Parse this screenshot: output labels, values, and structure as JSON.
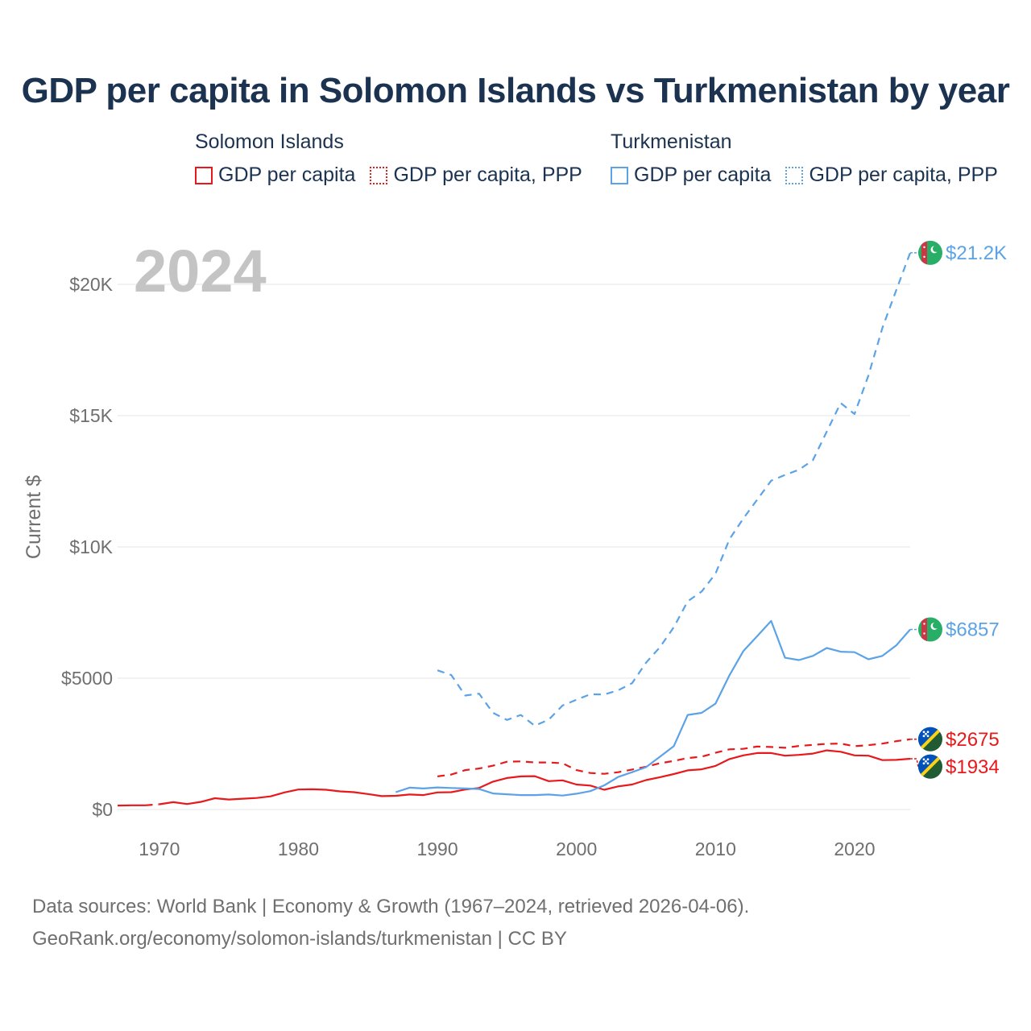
{
  "title": "GDP per capita in Solomon Islands vs Turkmenistan by year",
  "colors": {
    "solomon": "#e8181b",
    "turkmenistan": "#5ba3e6",
    "grid": "#e4e4e4",
    "axis_text": "#6f6f6f",
    "title": "#1b3350",
    "year_watermark": "#c4c4c4"
  },
  "legend": {
    "groups": [
      {
        "country": "Solomon Islands",
        "items": [
          "GDP per capita",
          "GDP per capita, PPP"
        ]
      },
      {
        "country": "Turkmenistan",
        "items": [
          "GDP per capita",
          "GDP per capita, PPP"
        ]
      }
    ]
  },
  "chart_data": {
    "type": "line",
    "title": "GDP per capita in Solomon Islands vs Turkmenistan by year",
    "year_label": "2024",
    "ylabel": "Current $",
    "xlabel": "",
    "xlim": [
      1967,
      2024
    ],
    "ylim": [
      0,
      22000
    ],
    "x_ticks": [
      1970,
      1980,
      1990,
      2000,
      2010,
      2020
    ],
    "y_ticks": [
      0,
      5000,
      10000,
      15000,
      20000
    ],
    "y_tick_labels": [
      "$0",
      "$5000",
      "$10K",
      "$15K",
      "$20K"
    ],
    "grid": true,
    "series": [
      {
        "name": "Solomon Islands GDP per capita",
        "country": "Solomon Islands",
        "dashed": false,
        "end_label": "$1934",
        "x": [
          1967,
          1968,
          1969,
          1970,
          1971,
          1972,
          1973,
          1974,
          1975,
          1976,
          1977,
          1978,
          1979,
          1980,
          1981,
          1982,
          1983,
          1984,
          1985,
          1986,
          1987,
          1988,
          1989,
          1990,
          1991,
          1992,
          1993,
          1994,
          1995,
          1996,
          1997,
          1998,
          1999,
          2000,
          2001,
          2002,
          2003,
          2004,
          2005,
          2006,
          2007,
          2008,
          2009,
          2010,
          2011,
          2012,
          2013,
          2014,
          2015,
          2016,
          2017,
          2018,
          2019,
          2020,
          2021,
          2022,
          2023,
          2024
        ],
        "y": [
          150,
          160,
          160,
          200,
          280,
          210,
          290,
          430,
          380,
          410,
          440,
          500,
          650,
          760,
          770,
          750,
          690,
          660,
          590,
          510,
          520,
          570,
          550,
          650,
          660,
          760,
          820,
          1060,
          1200,
          1260,
          1270,
          1080,
          1110,
          950,
          910,
          750,
          880,
          950,
          1120,
          1230,
          1350,
          1490,
          1530,
          1660,
          1920,
          2060,
          2150,
          2150,
          2050,
          2080,
          2130,
          2250,
          2200,
          2060,
          2050,
          1880,
          1890,
          1934
        ],
        "gap_after_index": [
          2
        ]
      },
      {
        "name": "Solomon Islands GDP per capita, PPP",
        "country": "Solomon Islands",
        "dashed": true,
        "end_label": "$2675",
        "x": [
          1990,
          1991,
          1992,
          1993,
          1994,
          1995,
          1996,
          1997,
          1998,
          1999,
          2000,
          2001,
          2002,
          2003,
          2004,
          2005,
          2006,
          2007,
          2008,
          2009,
          2010,
          2011,
          2012,
          2013,
          2014,
          2015,
          2016,
          2017,
          2018,
          2019,
          2020,
          2021,
          2022,
          2023,
          2024
        ],
        "y": [
          1260,
          1330,
          1500,
          1560,
          1670,
          1820,
          1830,
          1790,
          1790,
          1760,
          1500,
          1390,
          1360,
          1420,
          1520,
          1630,
          1760,
          1850,
          1960,
          2010,
          2160,
          2290,
          2310,
          2400,
          2380,
          2350,
          2420,
          2460,
          2500,
          2510,
          2410,
          2450,
          2510,
          2600,
          2675
        ]
      },
      {
        "name": "Turkmenistan GDP per capita",
        "country": "Turkmenistan",
        "dashed": false,
        "end_label": "$6857",
        "x": [
          1987,
          1988,
          1989,
          1990,
          1991,
          1992,
          1993,
          1994,
          1995,
          1996,
          1997,
          1998,
          1999,
          2000,
          2001,
          2002,
          2003,
          2004,
          2005,
          2006,
          2007,
          2008,
          2009,
          2010,
          2011,
          2012,
          2013,
          2014,
          2015,
          2016,
          2017,
          2018,
          2019,
          2020,
          2021,
          2022,
          2023,
          2024
        ],
        "y": [
          660,
          830,
          800,
          840,
          820,
          800,
          780,
          610,
          580,
          550,
          550,
          570,
          530,
          600,
          700,
          920,
          1240,
          1420,
          1610,
          2010,
          2410,
          3600,
          3680,
          4030,
          5110,
          6030,
          6600,
          7180,
          5780,
          5690,
          5850,
          6150,
          6010,
          5990,
          5720,
          5850,
          6250,
          6857
        ]
      },
      {
        "name": "Turkmenistan GDP per capita, PPP",
        "country": "Turkmenistan",
        "dashed": true,
        "end_label": "$21.2K",
        "x": [
          1990,
          1991,
          1992,
          1993,
          1994,
          1995,
          1996,
          1997,
          1998,
          1999,
          2000,
          2001,
          2002,
          2003,
          2004,
          2005,
          2006,
          2007,
          2008,
          2009,
          2010,
          2011,
          2012,
          2013,
          2014,
          2015,
          2016,
          2017,
          2018,
          2019,
          2020,
          2021,
          2022,
          2023,
          2024
        ],
        "y": [
          5300,
          5120,
          4340,
          4410,
          3680,
          3410,
          3600,
          3190,
          3420,
          3960,
          4180,
          4390,
          4380,
          4540,
          4810,
          5590,
          6180,
          6940,
          7930,
          8300,
          8980,
          10290,
          11080,
          11800,
          12520,
          12740,
          12940,
          13300,
          14390,
          15480,
          15060,
          16530,
          18340,
          19780,
          21200
        ]
      }
    ]
  },
  "footer": {
    "line1": "Data sources: World Bank | Economy & Growth (1967–2024, retrieved 2026-04-06).",
    "line2": "GeoRank.org/economy/solomon-islands/turkmenistan | CC BY"
  }
}
